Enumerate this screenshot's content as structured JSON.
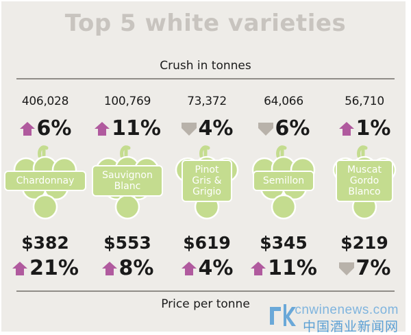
{
  "title": "Top 5 white varieties",
  "crush_heading": "Crush in tonnes",
  "price_heading": "Price per tonne",
  "colors": {
    "background": "#eeece8",
    "title": "#c8c4bf",
    "up_arrow": "#b05a9e",
    "down_arrow": "#b8b2aa",
    "grape": "#c4dc8f",
    "rule": "#8f8c87",
    "watermark_blue": "#6aa8d8"
  },
  "varieties": [
    {
      "name": "Chardonnay",
      "crush": "406,028",
      "crush_change": "6%",
      "crush_dir": "up",
      "price": "$382",
      "price_change": "21%",
      "price_dir": "up"
    },
    {
      "name": "Sauvignon Blanc",
      "crush": "100,769",
      "crush_change": "11%",
      "crush_dir": "up",
      "price": "$553",
      "price_change": "8%",
      "price_dir": "up"
    },
    {
      "name": "Pinot Gris & Grigio",
      "crush": "73,372",
      "crush_change": "4%",
      "crush_dir": "down",
      "price": "$619",
      "price_change": "4%",
      "price_dir": "up"
    },
    {
      "name": "Semillon",
      "crush": "64,066",
      "crush_change": "6%",
      "crush_dir": "down",
      "price": "$345",
      "price_change": "11%",
      "price_dir": "up"
    },
    {
      "name": "Muscat Gordo Blanco",
      "crush": "56,710",
      "crush_change": "1%",
      "crush_dir": "up",
      "price": "$219",
      "price_change": "7%",
      "price_dir": "down"
    }
  ],
  "watermark": {
    "url": "cnwinenews.com",
    "name": "中国酒业新闻网"
  }
}
